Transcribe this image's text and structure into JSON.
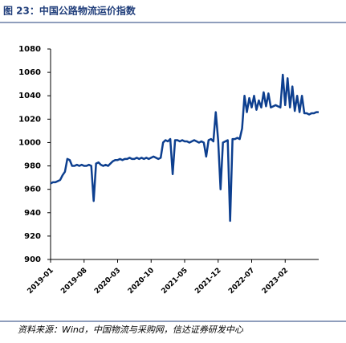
{
  "chart_data": {
    "type": "line",
    "title": "图 23：中国公路物流运价指数",
    "source": "资料来源：Wind，中国物流与采购网，信达证券研发中心",
    "categories": [
      "2019-01",
      null,
      null,
      null,
      null,
      null,
      null,
      null,
      null,
      null,
      null,
      null,
      null,
      null,
      "2019-08",
      null,
      null,
      null,
      null,
      null,
      null,
      null,
      null,
      null,
      null,
      null,
      null,
      null,
      "2020-03",
      null,
      null,
      null,
      null,
      null,
      null,
      null,
      null,
      null,
      null,
      null,
      null,
      null,
      "2020-10",
      null,
      null,
      null,
      null,
      null,
      null,
      null,
      null,
      null,
      null,
      null,
      null,
      null,
      "2021-05",
      null,
      null,
      null,
      null,
      null,
      null,
      null,
      null,
      null,
      null,
      null,
      null,
      null,
      "2021-12",
      null,
      null,
      null,
      null,
      null,
      null,
      null,
      null,
      null,
      null,
      null,
      null,
      null,
      "2022-07",
      null,
      null,
      null,
      null,
      null,
      null,
      null,
      null,
      null,
      null,
      null,
      null,
      null,
      "2023-02",
      null,
      null,
      null,
      null,
      null,
      null,
      null,
      null,
      null,
      null,
      null,
      null,
      null,
      null
    ],
    "series": [
      {
        "color": "#0d3f8f",
        "values": [
          965,
          966,
          966,
          967,
          968,
          972,
          975,
          986,
          985,
          980,
          980,
          981,
          980,
          981,
          980,
          980,
          981,
          980,
          950,
          982,
          983,
          981,
          980,
          981,
          980,
          982,
          984,
          985,
          985,
          986,
          985,
          986,
          986,
          987,
          986,
          986,
          987,
          986,
          987,
          986,
          987,
          986,
          987,
          988,
          987,
          986,
          987,
          1000,
          1002,
          1001,
          1003,
          973,
          1002,
          1002,
          1001,
          1002,
          1001,
          1001,
          1000,
          1001,
          1002,
          1001,
          1000,
          1001,
          1000,
          988,
          1002,
          1003,
          1001,
          1026,
          1002,
          960,
          1000,
          1001,
          1002,
          933,
          1003,
          1003,
          1004,
          1003,
          1012,
          1040,
          1026,
          1038,
          1030,
          1040,
          1028,
          1036,
          1030,
          1043,
          1031,
          1042,
          1030,
          1031,
          1032,
          1031,
          1030,
          1058,
          1032,
          1055,
          1030,
          1048,
          1027,
          1040,
          1026,
          1040,
          1025,
          1025,
          1024,
          1025,
          1025,
          1026,
          1026
        ]
      }
    ],
    "ylim": [
      900,
      1080
    ],
    "yticks": [
      900,
      920,
      940,
      960,
      980,
      1000,
      1020,
      1040,
      1060,
      1080
    ]
  }
}
